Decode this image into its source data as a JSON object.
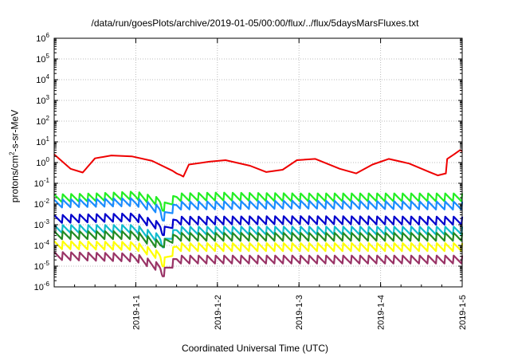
{
  "chart_data": {
    "type": "line",
    "title": "/data/run/goesPlots/archive/2019-01-05/00:00/flux/../flux/5daysMarsFluxes.txt",
    "xlabel": "Coordinated Universal Time (UTC)",
    "ylabel_parts": [
      "protons/cm",
      "2",
      "-s-sr-MeV"
    ],
    "y_scale": "log",
    "ylim": [
      1e-06,
      1000000.0
    ],
    "y_ticks": [
      {
        "base": "10",
        "exp": "-6",
        "value": 1e-06
      },
      {
        "base": "10",
        "exp": "-5",
        "value": 1e-05
      },
      {
        "base": "10",
        "exp": "-4",
        "value": 0.0001
      },
      {
        "base": "10",
        "exp": "-3",
        "value": 0.001
      },
      {
        "base": "10",
        "exp": "-2",
        "value": 0.01
      },
      {
        "base": "10",
        "exp": "-1",
        "value": 0.1
      },
      {
        "base": "10",
        "exp": "0",
        "value": 1
      },
      {
        "base": "10",
        "exp": "1",
        "value": 10
      },
      {
        "base": "10",
        "exp": "2",
        "value": 100
      },
      {
        "base": "10",
        "exp": "3",
        "value": 1000
      },
      {
        "base": "10",
        "exp": "4",
        "value": 10000
      },
      {
        "base": "10",
        "exp": "5",
        "value": 100000
      },
      {
        "base": "10",
        "exp": "6",
        "value": 1000000
      }
    ],
    "xlim": [
      "2018-12-31T00:00",
      "2019-01-05T00:00"
    ],
    "x_ticks": [
      {
        "label": "2019-1-1",
        "date": "2019-01-01T00:00"
      },
      {
        "label": "2019-1-2",
        "date": "2019-01-02T00:00"
      },
      {
        "label": "2019-1-3",
        "date": "2019-01-03T00:00"
      },
      {
        "label": "2019-1-4",
        "date": "2019-01-04T00:00"
      },
      {
        "label": "2019-1-5",
        "date": "2019-01-05T00:00"
      }
    ],
    "grid": true,
    "sawtooth_period_hours": 2.5,
    "series": [
      {
        "color": "#ee0000",
        "points": [
          [
            "2018-12-31T00:00",
            2.5
          ],
          [
            "2018-12-31T04:48",
            0.5
          ],
          [
            "2018-12-31T08:24",
            0.33
          ],
          [
            "2018-12-31T12:00",
            1.6
          ],
          [
            "2018-12-31T16:48",
            2.2
          ],
          [
            "2018-12-31T22:48",
            2.0
          ],
          [
            "2019-01-01T04:48",
            1.2
          ],
          [
            "2019-01-01T10:48",
            0.4
          ],
          [
            "2019-01-01T12:00",
            0.3
          ],
          [
            "2019-01-01T12:24",
            0.28
          ],
          [
            "2019-01-01T13:12",
            0.25
          ],
          [
            "2019-01-01T14:00",
            0.21
          ],
          [
            "2019-01-01T15:36",
            0.8
          ],
          [
            "2019-01-01T21:36",
            1.1
          ],
          [
            "2019-01-02T02:24",
            1.3
          ],
          [
            "2019-01-02T09:36",
            0.7
          ],
          [
            "2019-01-02T14:24",
            0.35
          ],
          [
            "2019-01-02T19:12",
            0.45
          ],
          [
            "2019-01-02T23:24",
            1.3
          ],
          [
            "2019-01-03T04:48",
            1.5
          ],
          [
            "2019-01-03T12:00",
            0.5
          ],
          [
            "2019-01-03T16:48",
            0.3
          ],
          [
            "2019-01-03T21:36",
            0.8
          ],
          [
            "2019-01-04T02:24",
            1.5
          ],
          [
            "2019-01-04T08:24",
            0.9
          ],
          [
            "2019-01-04T14:24",
            0.35
          ],
          [
            "2019-01-04T16:48",
            0.24
          ],
          [
            "2019-01-04T19:12",
            0.3
          ],
          [
            "2019-01-04T19:36",
            1.5
          ],
          [
            "2019-01-04T21:36",
            2.5
          ],
          [
            "2019-01-04T23:24",
            4.0
          ],
          [
            "2019-01-05T00:00",
            3.5
          ]
        ]
      },
      {
        "color": "#22ee22",
        "points": [
          [
            "2018-12-31T00:00",
            0.018
          ],
          [
            "2018-12-31T12:00",
            0.02
          ],
          [
            "2019-01-01T00:00",
            0.025
          ],
          [
            "2019-01-01T07:12",
            0.012
          ],
          [
            "2019-01-01T07:48",
            0.006
          ],
          [
            "2019-01-01T12:00",
            0.02
          ],
          [
            "2019-01-02T00:00",
            0.022
          ],
          [
            "2019-01-03T00:00",
            0.02
          ],
          [
            "2019-01-04T00:00",
            0.02
          ],
          [
            "2019-01-05T00:00",
            0.02
          ]
        ]
      },
      {
        "color": "#1a8cff",
        "points": [
          [
            "2018-12-31T00:00",
            0.01
          ],
          [
            "2019-01-01T00:00",
            0.012
          ],
          [
            "2019-01-01T07:12",
            0.005
          ],
          [
            "2019-01-01T07:48",
            0.002
          ],
          [
            "2019-01-01T12:00",
            0.008
          ],
          [
            "2019-01-03T00:00",
            0.009
          ],
          [
            "2019-01-05T00:00",
            0.008
          ]
        ]
      },
      {
        "color": "#0000cc",
        "points": [
          [
            "2018-12-31T00:00",
            0.0018
          ],
          [
            "2019-01-01T00:00",
            0.0022
          ],
          [
            "2019-01-01T07:12",
            0.0008
          ],
          [
            "2019-01-01T07:48",
            0.0004
          ],
          [
            "2019-01-01T12:00",
            0.0015
          ],
          [
            "2019-01-03T00:00",
            0.0016
          ],
          [
            "2019-01-05T00:00",
            0.0015
          ]
        ]
      },
      {
        "color": "#11bbcc",
        "points": [
          [
            "2018-12-31T00:00",
            0.0006
          ],
          [
            "2019-01-01T00:00",
            0.0006
          ],
          [
            "2019-01-01T07:12",
            0.0002
          ],
          [
            "2019-01-01T07:48",
            0.0001
          ],
          [
            "2019-01-01T12:00",
            0.0005
          ],
          [
            "2019-01-05T00:00",
            0.0005
          ]
        ]
      },
      {
        "color": "#228b22",
        "points": [
          [
            "2018-12-31T00:00",
            0.0003
          ],
          [
            "2019-01-01T00:00",
            0.0003
          ],
          [
            "2019-01-01T07:12",
            0.0001
          ],
          [
            "2019-01-01T12:00",
            0.00025
          ],
          [
            "2019-01-05T00:00",
            0.00025
          ]
        ]
      },
      {
        "color": "#ffff00",
        "points": [
          [
            "2018-12-31T00:00",
            0.0001
          ],
          [
            "2019-01-01T00:00",
            9e-05
          ],
          [
            "2019-01-01T07:12",
            3e-05
          ],
          [
            "2019-01-01T07:48",
            1.2e-05
          ],
          [
            "2019-01-01T12:00",
            8e-05
          ],
          [
            "2019-01-05T00:00",
            8e-05
          ]
        ]
      },
      {
        "color": "#993366",
        "points": [
          [
            "2018-12-31T00:00",
            3e-05
          ],
          [
            "2019-01-01T00:00",
            2.5e-05
          ],
          [
            "2019-01-01T07:12",
            8e-06
          ],
          [
            "2019-01-01T07:48",
            4e-06
          ],
          [
            "2019-01-01T12:00",
            2e-05
          ],
          [
            "2019-01-05T00:00",
            2e-05
          ]
        ]
      }
    ]
  }
}
